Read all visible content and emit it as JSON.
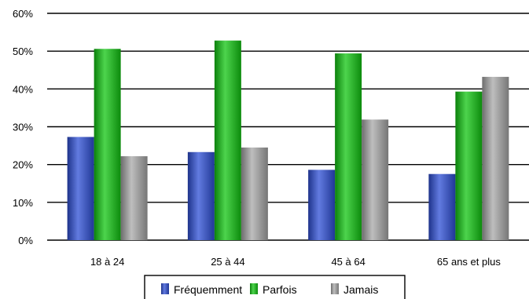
{
  "chart_data": {
    "type": "bar",
    "categories": [
      "18 à 24",
      "25 à 44",
      "45 à 64",
      "65 ans et plus"
    ],
    "series": [
      {
        "name": "Fréquemment",
        "values": [
          27.3,
          23.3,
          18.6,
          17.5
        ],
        "color": "#2e4fd6"
      },
      {
        "name": "Parfois",
        "values": [
          50.6,
          52.8,
          49.4,
          39.3
        ],
        "color": "#11c611"
      },
      {
        "name": "Jamais",
        "values": [
          22.2,
          24.5,
          31.9,
          43.2
        ],
        "color": "#a8a8a8"
      }
    ],
    "ylim": [
      0,
      60
    ],
    "yticks": [
      0,
      10,
      20,
      30,
      40,
      50,
      60
    ],
    "ytick_labels": [
      "0%",
      "10%",
      "20%",
      "30%",
      "40%",
      "50%",
      "60%"
    ],
    "grid": true,
    "legend_position": "bottom"
  }
}
